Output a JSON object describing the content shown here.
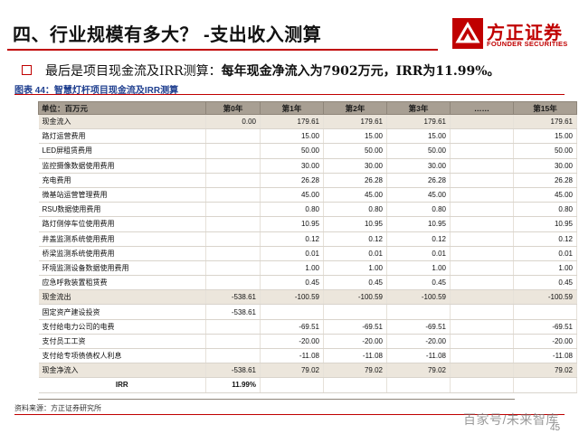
{
  "header": {
    "title": "四、行业规模有多大？ -支出收入测算",
    "logo_cn": "方正证券",
    "logo_en": "FOUNDER SECURITIES",
    "accent_color": "#c00000"
  },
  "bullet": {
    "prefix": "最后是项目现金流及IRR测算：",
    "emphasis": "每年现金净流入为7902万元，IRR为11.99%。"
  },
  "figure": {
    "caption": "图表 44：智慧灯杆项目现金流及IRR测算"
  },
  "table": {
    "headers": [
      "单位：百万元",
      "第0年",
      "第1年",
      "第2年",
      "第3年",
      "……",
      "第15年"
    ],
    "rows": [
      {
        "label": "现金流入",
        "values": [
          "0.00",
          "179.61",
          "179.61",
          "179.61",
          "",
          "179.61"
        ],
        "kind": "sum"
      },
      {
        "label": "路灯运营费用",
        "values": [
          "",
          "15.00",
          "15.00",
          "15.00",
          "",
          "15.00"
        ],
        "kind": "item"
      },
      {
        "label": "LED屏租赁费用",
        "values": [
          "",
          "50.00",
          "50.00",
          "50.00",
          "",
          "50.00"
        ],
        "kind": "item"
      },
      {
        "label": "监控摄像数据使用费用",
        "values": [
          "",
          "30.00",
          "30.00",
          "30.00",
          "",
          "30.00"
        ],
        "kind": "item"
      },
      {
        "label": "充电费用",
        "values": [
          "",
          "26.28",
          "26.28",
          "26.28",
          "",
          "26.28"
        ],
        "kind": "item"
      },
      {
        "label": "微基站运营管理费用",
        "values": [
          "",
          "45.00",
          "45.00",
          "45.00",
          "",
          "45.00"
        ],
        "kind": "item"
      },
      {
        "label": "RSU数据使用费用",
        "values": [
          "",
          "0.80",
          "0.80",
          "0.80",
          "",
          "0.80"
        ],
        "kind": "item"
      },
      {
        "label": "路灯侧停车位使用费用",
        "values": [
          "",
          "10.95",
          "10.95",
          "10.95",
          "",
          "10.95"
        ],
        "kind": "item"
      },
      {
        "label": "井盖监测系统使用费用",
        "values": [
          "",
          "0.12",
          "0.12",
          "0.12",
          "",
          "0.12"
        ],
        "kind": "item"
      },
      {
        "label": "桥梁监测系统使用费用",
        "values": [
          "",
          "0.01",
          "0.01",
          "0.01",
          "",
          "0.01"
        ],
        "kind": "item"
      },
      {
        "label": "环境监测设备数据使用费用",
        "values": [
          "",
          "1.00",
          "1.00",
          "1.00",
          "",
          "1.00"
        ],
        "kind": "item"
      },
      {
        "label": "应急呼救装置租赁费",
        "values": [
          "",
          "0.45",
          "0.45",
          "0.45",
          "",
          "0.45"
        ],
        "kind": "item"
      },
      {
        "label": "现金流出",
        "values": [
          "-538.61",
          "-100.59",
          "-100.59",
          "-100.59",
          "",
          "-100.59"
        ],
        "kind": "sum"
      },
      {
        "label": "固定资产建设投资",
        "values": [
          "-538.61",
          "",
          "",
          "",
          "",
          ""
        ],
        "kind": "item"
      },
      {
        "label": "支付给电力公司的电费",
        "values": [
          "",
          "-69.51",
          "-69.51",
          "-69.51",
          "",
          "-69.51"
        ],
        "kind": "item"
      },
      {
        "label": "支付员工工资",
        "values": [
          "",
          "-20.00",
          "-20.00",
          "-20.00",
          "",
          "-20.00"
        ],
        "kind": "item"
      },
      {
        "label": "支付给专项债债权人利息",
        "values": [
          "",
          "-11.08",
          "-11.08",
          "-11.08",
          "",
          "-11.08"
        ],
        "kind": "item"
      },
      {
        "label": "现金净流入",
        "values": [
          "-538.61",
          "79.02",
          "79.02",
          "79.02",
          "",
          "79.02"
        ],
        "kind": "sum"
      },
      {
        "label": "IRR",
        "values": [
          "11.99%",
          "",
          "",
          "",
          "",
          ""
        ],
        "kind": "irr"
      }
    ]
  },
  "footer": {
    "source": "资料来源：方正证券研究所",
    "page_number": "45",
    "watermark": "百家号/未来智库"
  }
}
